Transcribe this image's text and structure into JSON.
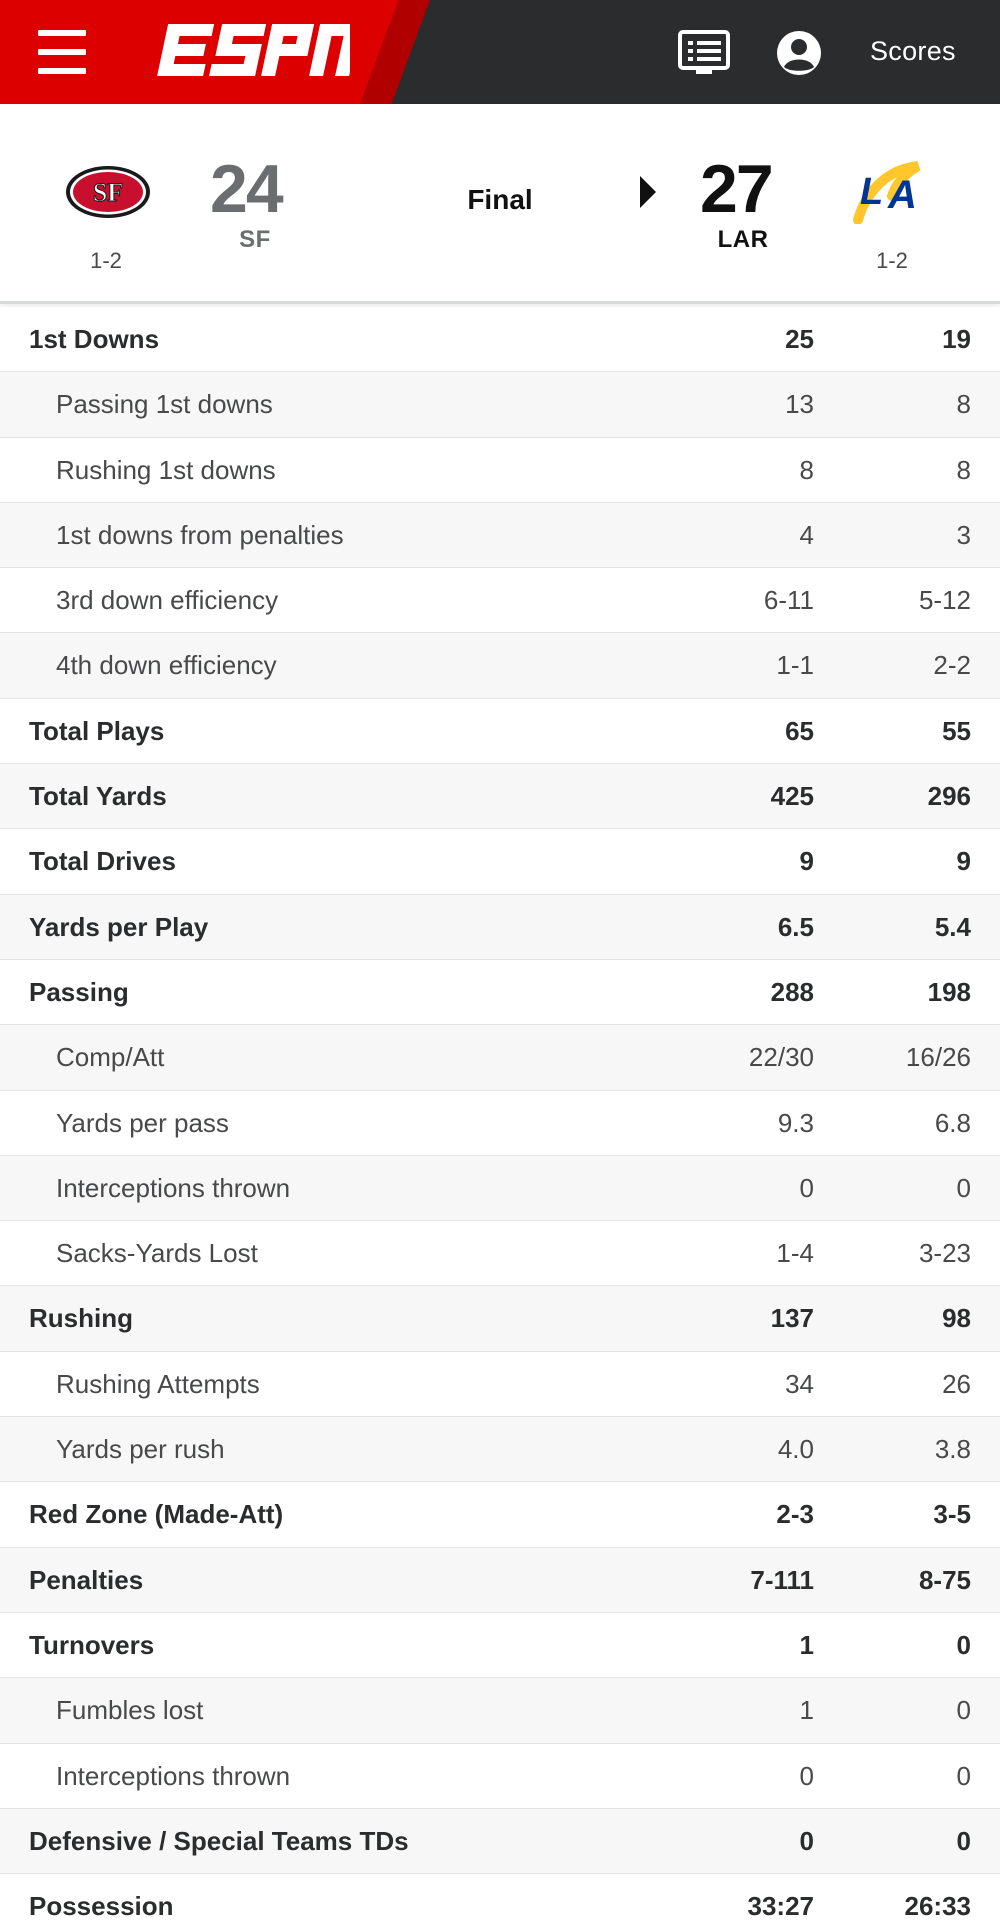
{
  "nav": {
    "scores_label": "Scores",
    "brand": "ESPN",
    "icons": [
      "menu-icon",
      "scoreboard-icon",
      "user-icon"
    ],
    "colors": {
      "brand_red": "#dd0000",
      "bar_dark": "#2b2c2e"
    }
  },
  "game": {
    "status": "Final",
    "away": {
      "abbr": "SF",
      "score": "24",
      "record": "1-2",
      "logo": "49ers-logo",
      "result": "loss"
    },
    "home": {
      "abbr": "LAR",
      "score": "27",
      "record": "1-2",
      "logo": "rams-logo",
      "result": "win"
    }
  },
  "stats": [
    {
      "label": "1st Downs",
      "away": "25",
      "home": "19",
      "level": "main"
    },
    {
      "label": "Passing 1st downs",
      "away": "13",
      "home": "8",
      "level": "sub"
    },
    {
      "label": "Rushing 1st downs",
      "away": "8",
      "home": "8",
      "level": "sub"
    },
    {
      "label": "1st downs from penalties",
      "away": "4",
      "home": "3",
      "level": "sub"
    },
    {
      "label": "3rd down efficiency",
      "away": "6-11",
      "home": "5-12",
      "level": "sub"
    },
    {
      "label": "4th down efficiency",
      "away": "1-1",
      "home": "2-2",
      "level": "sub"
    },
    {
      "label": "Total Plays",
      "away": "65",
      "home": "55",
      "level": "main"
    },
    {
      "label": "Total Yards",
      "away": "425",
      "home": "296",
      "level": "main"
    },
    {
      "label": "Total Drives",
      "away": "9",
      "home": "9",
      "level": "main"
    },
    {
      "label": "Yards per Play",
      "away": "6.5",
      "home": "5.4",
      "level": "main"
    },
    {
      "label": "Passing",
      "away": "288",
      "home": "198",
      "level": "main"
    },
    {
      "label": "Comp/Att",
      "away": "22/30",
      "home": "16/26",
      "level": "sub"
    },
    {
      "label": "Yards per pass",
      "away": "9.3",
      "home": "6.8",
      "level": "sub"
    },
    {
      "label": "Interceptions thrown",
      "away": "0",
      "home": "0",
      "level": "sub"
    },
    {
      "label": "Sacks-Yards Lost",
      "away": "1-4",
      "home": "3-23",
      "level": "sub"
    },
    {
      "label": "Rushing",
      "away": "137",
      "home": "98",
      "level": "main"
    },
    {
      "label": "Rushing Attempts",
      "away": "34",
      "home": "26",
      "level": "sub"
    },
    {
      "label": "Yards per rush",
      "away": "4.0",
      "home": "3.8",
      "level": "sub"
    },
    {
      "label": "Red Zone (Made-Att)",
      "away": "2-3",
      "home": "3-5",
      "level": "main"
    },
    {
      "label": "Penalties",
      "away": "7-111",
      "home": "8-75",
      "level": "main"
    },
    {
      "label": "Turnovers",
      "away": "1",
      "home": "0",
      "level": "main"
    },
    {
      "label": "Fumbles lost",
      "away": "1",
      "home": "0",
      "level": "sub"
    },
    {
      "label": "Interceptions thrown",
      "away": "0",
      "home": "0",
      "level": "sub"
    },
    {
      "label": "Defensive / Special Teams TDs",
      "away": "0",
      "home": "0",
      "level": "main"
    },
    {
      "label": "Possession",
      "away": "33:27",
      "home": "26:33",
      "level": "main"
    }
  ]
}
